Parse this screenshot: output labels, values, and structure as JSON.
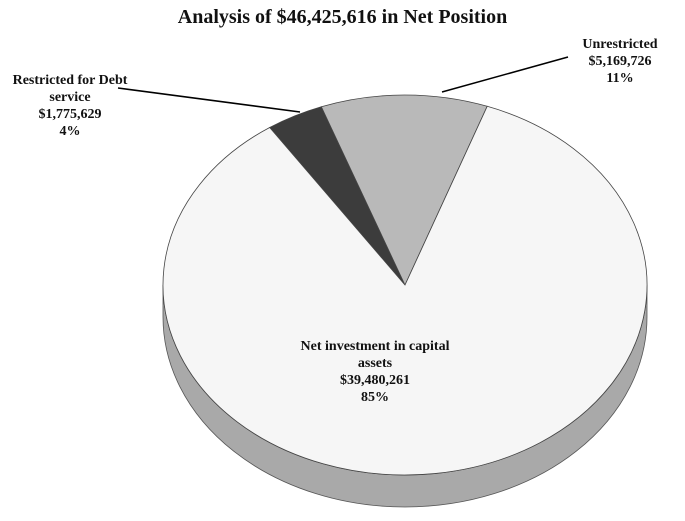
{
  "chart_data": {
    "type": "pie3d",
    "title": "Analysis of $46,425,616 in Net Position",
    "categories": [
      "Restricted for Debt service",
      "Unrestricted",
      "Net investment in capital assets"
    ],
    "values": [
      1775629,
      5169726,
      39480261
    ],
    "value_labels": [
      "$1,775,629",
      "$5,169,726",
      "$39,480,261"
    ],
    "percents": [
      4,
      11,
      85
    ],
    "percent_labels": [
      "4%",
      "11%",
      "85%"
    ],
    "colors": [
      "#3c3c3c",
      "#b9b9b9",
      "#f6f6f6"
    ],
    "side_colors": [
      "#2a2a2a",
      "#8f8f8f",
      "#a9a9a9"
    ]
  }
}
